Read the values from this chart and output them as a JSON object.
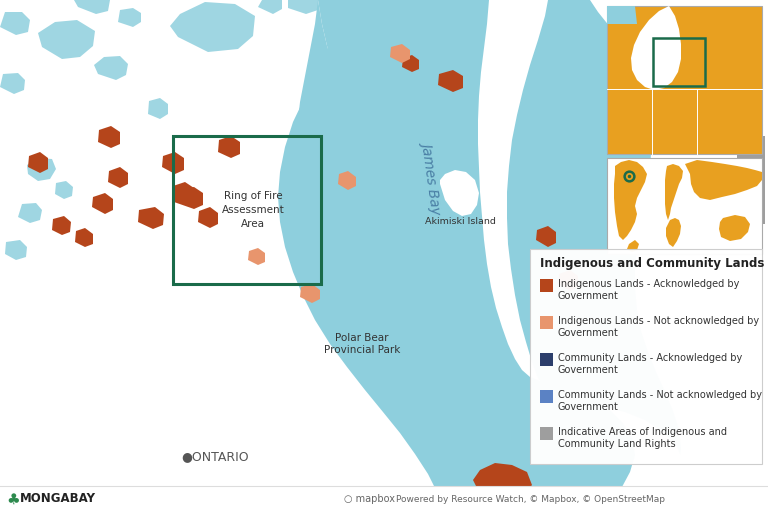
{
  "background_color": "#ffffff",
  "water_color": "#8ecfdd",
  "land_color": "#ffffff",
  "james_bay_label": "James Bay",
  "polar_bear_label": "Polar Bear\nProvincial Park",
  "akimiski_label": "Akimiski Island",
  "ontario_label": "●ONTARIO",
  "ring_of_fire_label": "Ring of Fire\nAssessment\nArea",
  "ring_of_fire_box_color": "#1a6b4a",
  "legend_title": "Indigenous and Community Lands",
  "legend_items": [
    {
      "label": "Indigenous Lands - Acknowledged by\nGovernment",
      "color": "#b5451b"
    },
    {
      "label": "Indigenous Lands - Not acknowledged by\nGovernment",
      "color": "#e8956d"
    },
    {
      "label": "Community Lands - Acknowledged by\nGovernment",
      "color": "#2c3e6b"
    },
    {
      "label": "Community Lands - Not acknowledged by\nGovernment",
      "color": "#5b82c4"
    },
    {
      "label": "Indicative Areas of Indigenous and\nCommunity Land Rights",
      "color": "#9e9e9e"
    }
  ],
  "mongabay_color": "#2c2c2c",
  "footer_color": "#666666",
  "inset_land_color": "#e8a020",
  "inset_water_color": "#8ecfdd",
  "inset_box_color": "#1a6b4a"
}
